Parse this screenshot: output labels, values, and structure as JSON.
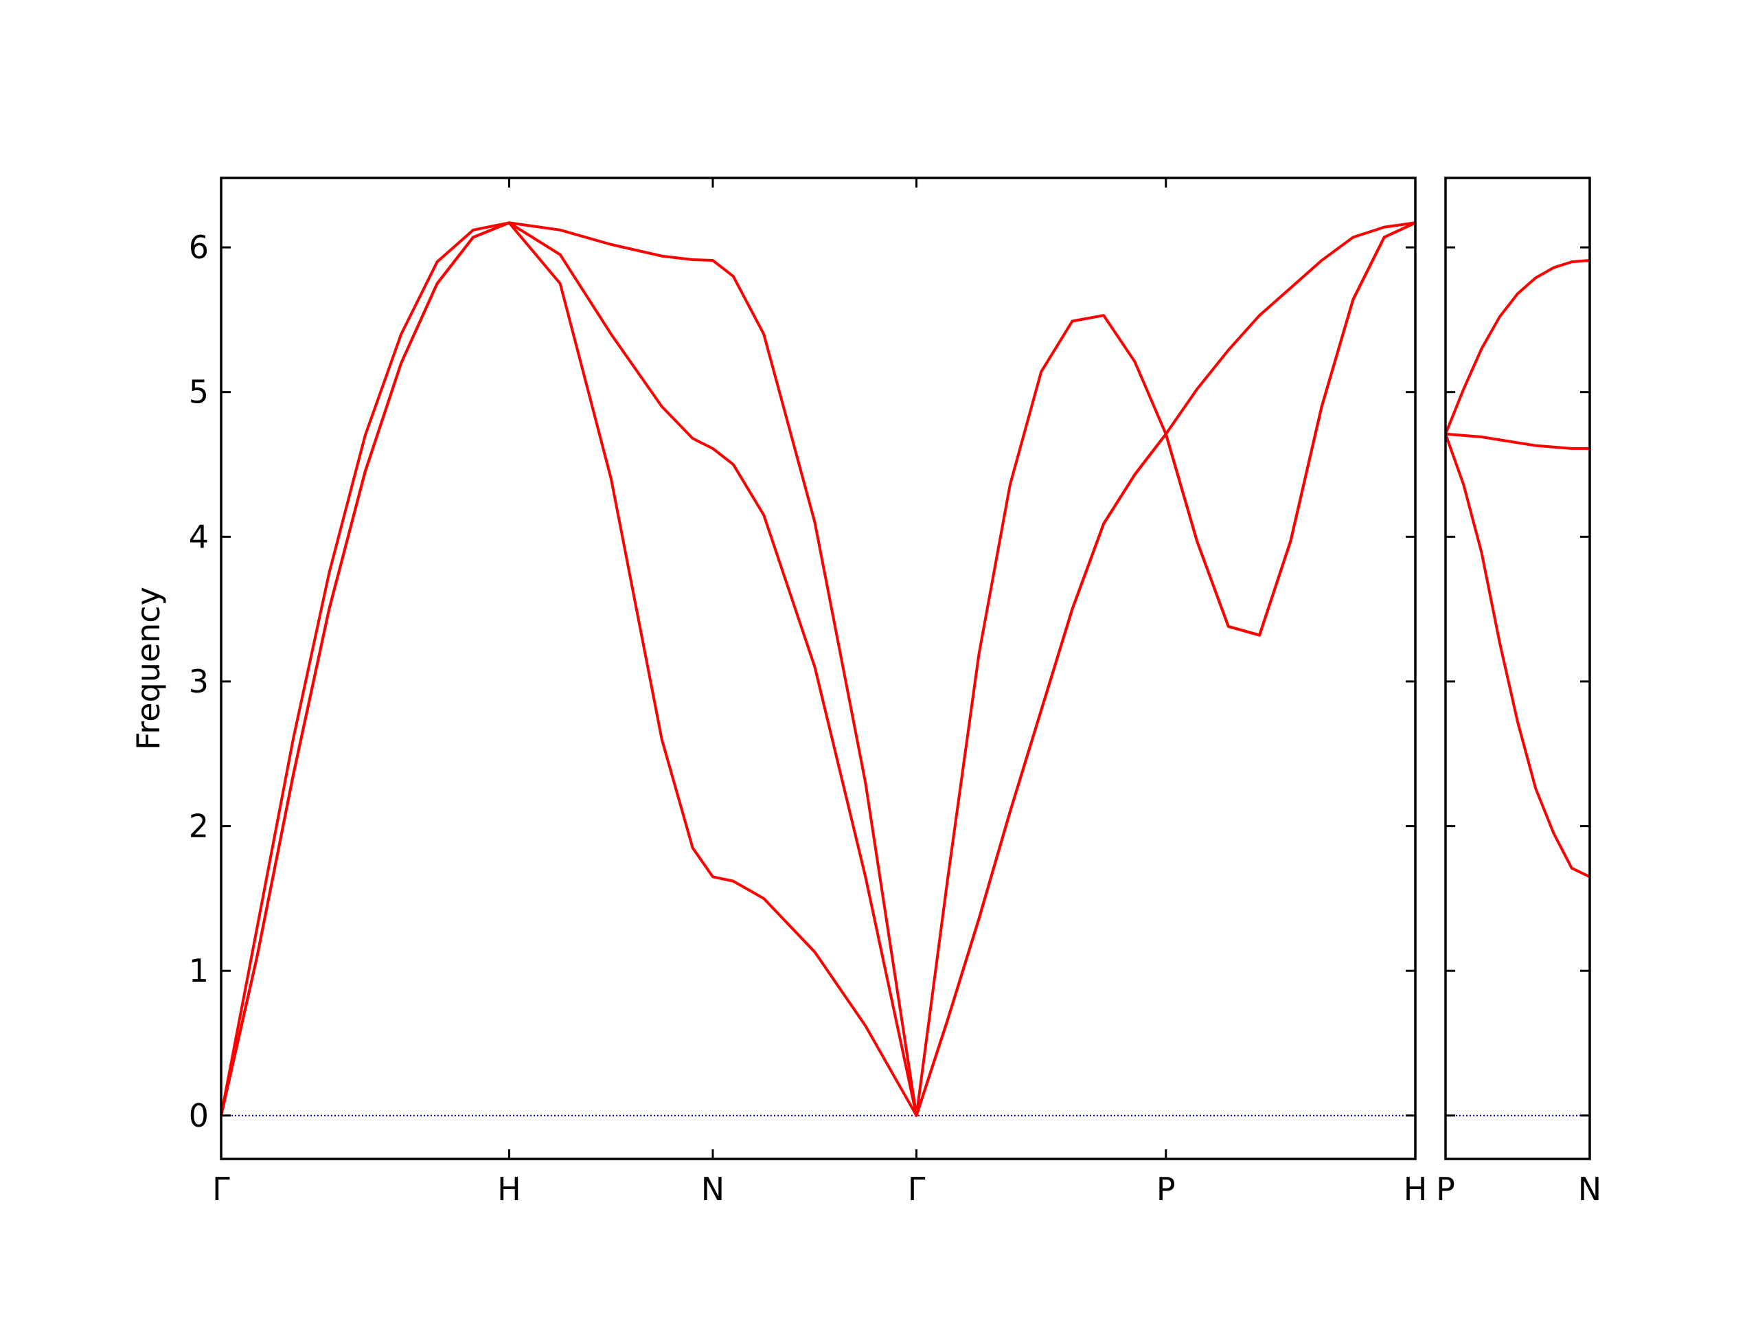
{
  "chart_data": [
    {
      "type": "line",
      "ylabel": "Frequency",
      "x": [
        0,
        0.125,
        0.25,
        0.375,
        0.5,
        0.625,
        0.75,
        0.875,
        1,
        1.177,
        1.354,
        1.53,
        1.637,
        1.707,
        1.778,
        1.884,
        2.061,
        2.237,
        2.414,
        2.522,
        2.631,
        2.739,
        2.847,
        2.955,
        3.064,
        3.172,
        3.28,
        3.388,
        3.497,
        3.605,
        3.713,
        3.821,
        3.93,
        4.038,
        4.146
      ],
      "series": [
        {
          "color": "#ff0000",
          "values": [
            0,
            1.1,
            2.35,
            3.5,
            4.45,
            5.2,
            5.75,
            6.07,
            6.17,
            5.75,
            4.4,
            2.6,
            1.85,
            1.65,
            1.62,
            1.5,
            1.13,
            0.62,
            0,
            0.66,
            1.36,
            2.1,
            2.8,
            3.5,
            4.09,
            4.43,
            4.71,
            3.97,
            3.38,
            3.32,
            3.97,
            4.9,
            5.64,
            6.07,
            6.17
          ]
        },
        {
          "color": "#ff0000",
          "values": [
            0,
            1.1,
            2.35,
            3.5,
            4.45,
            5.2,
            5.75,
            6.07,
            6.17,
            5.95,
            5.4,
            4.9,
            4.68,
            4.61,
            4.5,
            4.15,
            3.1,
            1.65,
            0,
            0.66,
            1.36,
            2.1,
            2.8,
            3.5,
            4.09,
            4.43,
            4.71,
            3.97,
            3.38,
            3.32,
            3.97,
            4.9,
            5.64,
            6.07,
            6.17
          ]
        },
        {
          "color": "#ff0000",
          "values": [
            0,
            1.3,
            2.6,
            3.75,
            4.7,
            5.4,
            5.9,
            6.12,
            6.17,
            6.12,
            6.02,
            5.94,
            5.915,
            5.91,
            5.8,
            5.4,
            4.1,
            2.3,
            0,
            1.63,
            3.19,
            4.36,
            5.14,
            5.49,
            5.53,
            5.21,
            4.71,
            5.02,
            5.29,
            5.53,
            5.72,
            5.91,
            6.07,
            6.14,
            6.17
          ]
        }
      ],
      "xlim": [
        0,
        4.146
      ],
      "ylim": [
        -0.3,
        6.48
      ],
      "xticks": [
        {
          "value": 0,
          "label": "Γ"
        },
        {
          "value": 1,
          "label": "H"
        },
        {
          "value": 1.707,
          "label": "N"
        },
        {
          "value": 2.414,
          "label": "Γ"
        },
        {
          "value": 3.28,
          "label": "P"
        },
        {
          "value": 4.146,
          "label": "H"
        }
      ],
      "yticks": [
        0,
        1,
        2,
        3,
        4,
        5,
        6
      ],
      "show_ytick_labels": true,
      "hlines": [
        {
          "y": 0,
          "color": "#0000cc"
        }
      ]
    },
    {
      "type": "line",
      "x": [
        0,
        0.0625,
        0.125,
        0.1875,
        0.25,
        0.3125,
        0.375,
        0.4375,
        0.5
      ],
      "series": [
        {
          "color": "#ff0000",
          "values": [
            4.71,
            4.36,
            3.89,
            3.27,
            2.72,
            2.26,
            1.95,
            1.71,
            1.65
          ]
        },
        {
          "color": "#ff0000",
          "values": [
            4.71,
            4.7,
            4.69,
            4.67,
            4.65,
            4.63,
            4.62,
            4.61,
            4.61
          ]
        },
        {
          "color": "#ff0000",
          "values": [
            4.71,
            5.02,
            5.3,
            5.52,
            5.68,
            5.79,
            5.86,
            5.9,
            5.91
          ]
        }
      ],
      "xlim": [
        0,
        0.5
      ],
      "ylim": [
        -0.3,
        6.48
      ],
      "xticks": [
        {
          "value": 0,
          "label": "P"
        },
        {
          "value": 0.5,
          "label": "N"
        }
      ],
      "yticks": [
        0,
        1,
        2,
        3,
        4,
        5,
        6
      ],
      "show_ytick_labels": false,
      "hlines": [
        {
          "y": 0,
          "color": "#0000cc"
        }
      ]
    }
  ]
}
